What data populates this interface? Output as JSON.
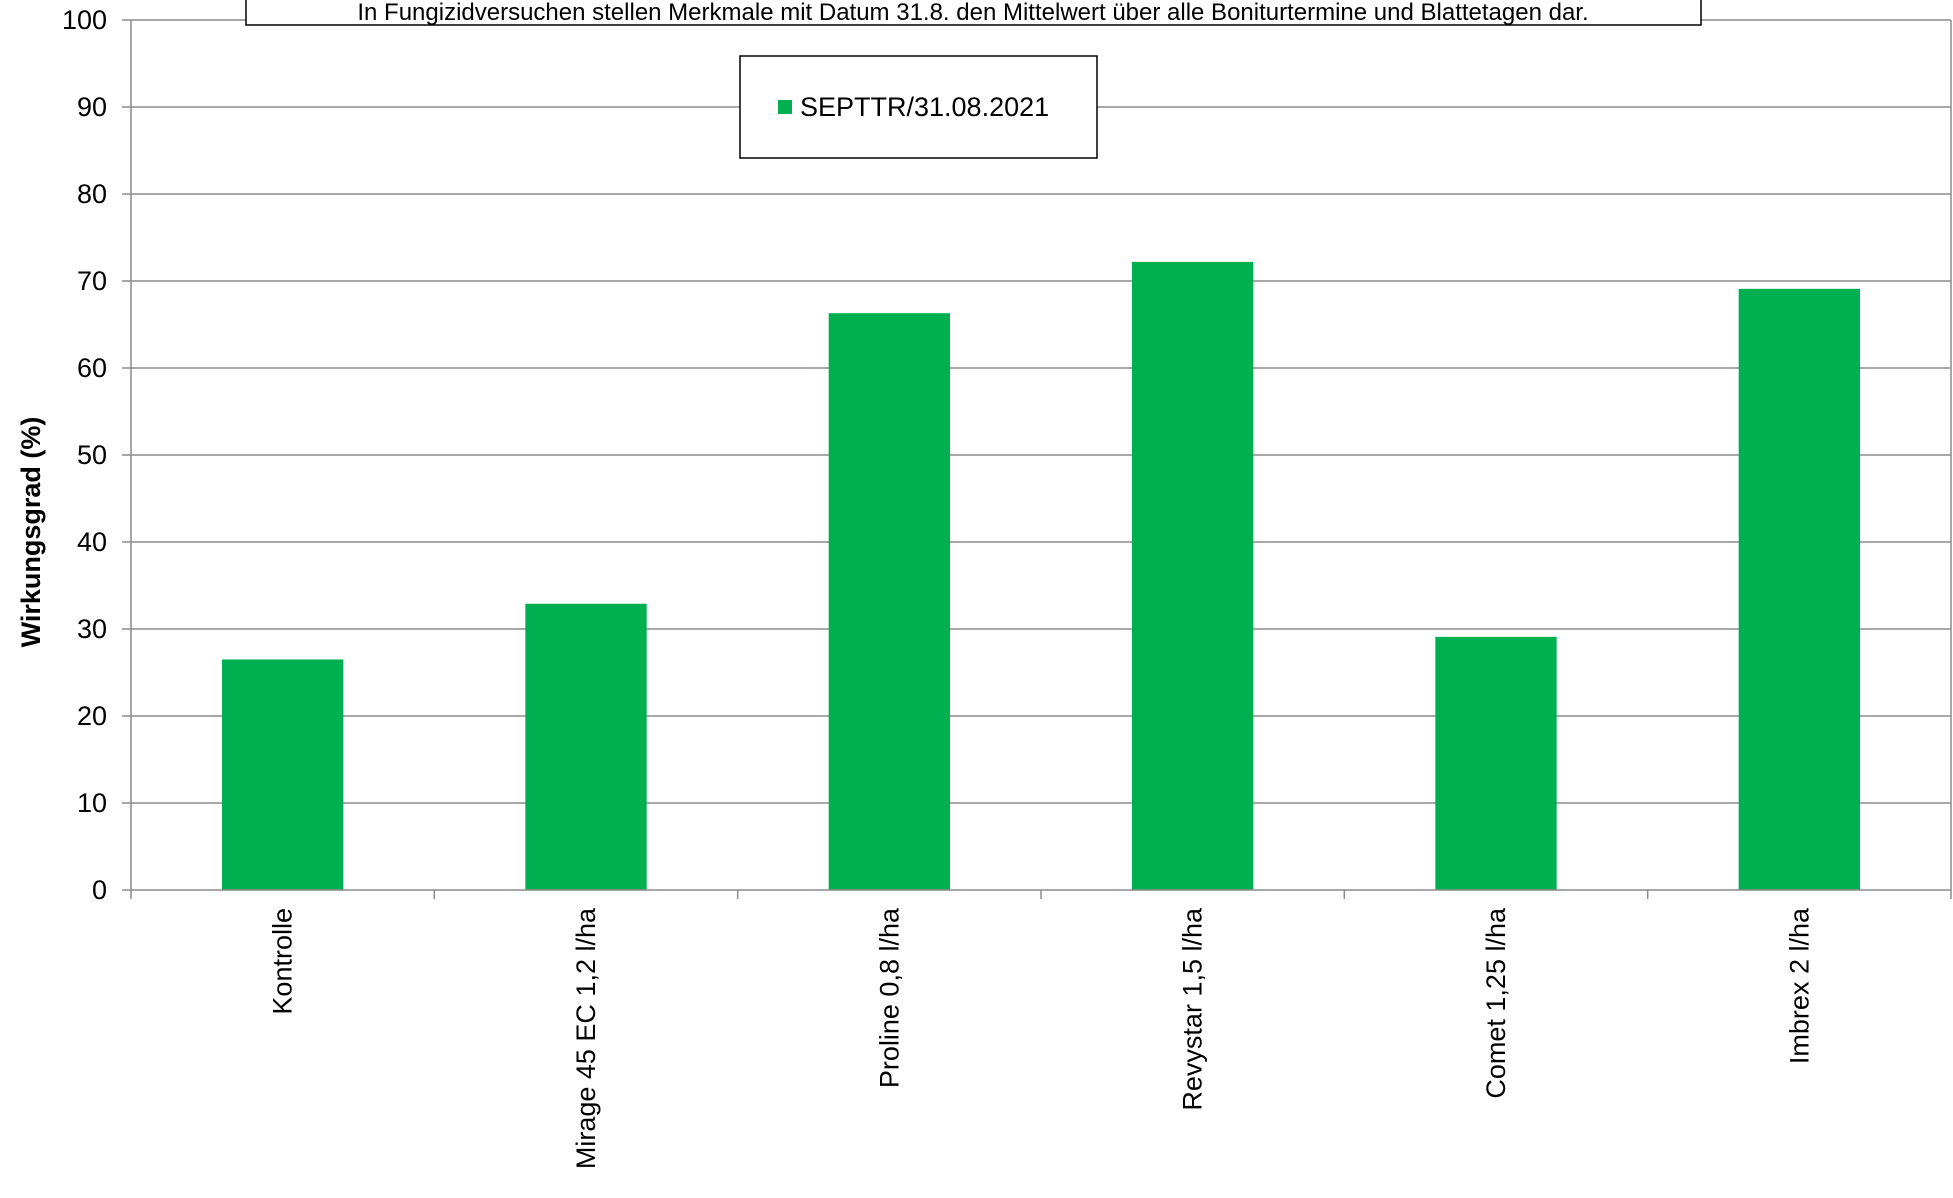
{
  "chart_data": {
    "type": "bar",
    "note": "In Fungizidversuchen stellen Merkmale mit Datum 31.8. den Mittelwert über alle Boniturtermine und Blattetagen dar.",
    "ylabel": "Wirkungsgrad (%)",
    "xlabel": "",
    "ylim": [
      0,
      100
    ],
    "yticks": [
      0,
      10,
      20,
      30,
      40,
      50,
      60,
      70,
      80,
      90,
      100
    ],
    "grid": true,
    "legend_position": "top-center",
    "categories": [
      "Kontrolle",
      "Mirage 45 EC 1,2 l/ha",
      "Proline 0,8 l/ha",
      "Revystar 1,5 l/ha",
      "Comet 1,25 l/ha",
      "Imbrex 2 l/ha"
    ],
    "series": [
      {
        "name": "SEPTTR/31.08.2021",
        "color": "#00b050",
        "values": [
          26.5,
          32.9,
          66.3,
          72.2,
          29.1,
          69.1
        ]
      }
    ]
  }
}
